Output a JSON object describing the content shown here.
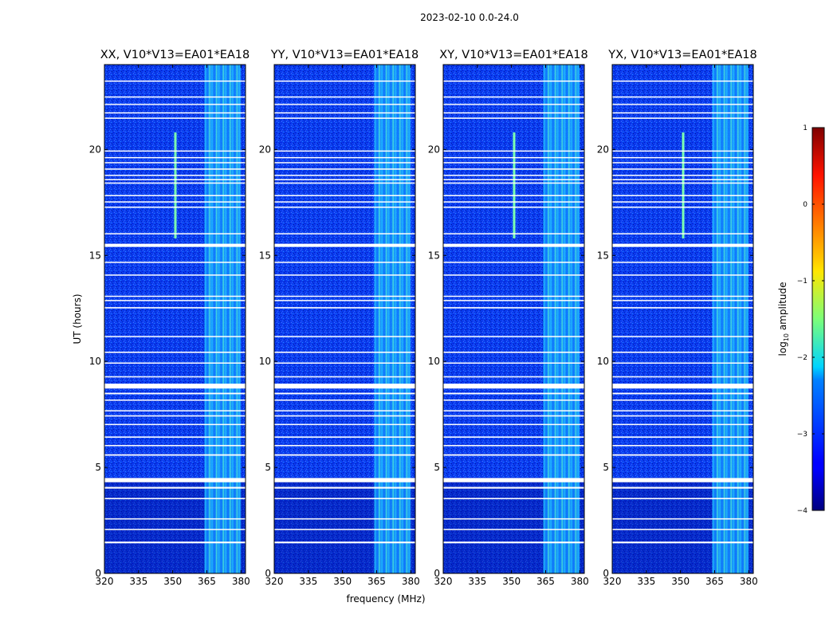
{
  "figure": {
    "suptitle": "2023-02-10 0.0-24.0",
    "xlabel": "frequency (MHz)",
    "ylabel": "UT (hours)"
  },
  "chart_data": {
    "type": "heatmap",
    "colormap": "jet",
    "xlim": [
      320,
      382
    ],
    "ylim": [
      0,
      24
    ],
    "xticks": [
      320,
      335,
      350,
      365,
      380
    ],
    "yticks": [
      0,
      5,
      10,
      15,
      20
    ],
    "flagged_time_bands_hours": [
      [
        1.42,
        1.5
      ],
      [
        2.05,
        2.1
      ],
      [
        2.55,
        2.6
      ],
      [
        3.5,
        3.56
      ],
      [
        4.0,
        4.08
      ],
      [
        4.3,
        4.5
      ],
      [
        5.55,
        5.62
      ],
      [
        6.0,
        6.06
      ],
      [
        6.4,
        6.46
      ],
      [
        7.0,
        7.05
      ],
      [
        7.4,
        7.46
      ],
      [
        7.65,
        7.7
      ],
      [
        8.15,
        8.2
      ],
      [
        8.45,
        8.52
      ],
      [
        8.72,
        8.95
      ],
      [
        9.25,
        9.3
      ],
      [
        9.9,
        9.95
      ],
      [
        10.4,
        10.46
      ],
      [
        11.15,
        11.2
      ],
      [
        12.5,
        12.56
      ],
      [
        12.85,
        12.9
      ],
      [
        13.05,
        13.1
      ],
      [
        14.05,
        14.1
      ],
      [
        14.65,
        14.7
      ],
      [
        15.4,
        15.55
      ],
      [
        16.0,
        16.05
      ],
      [
        17.25,
        17.3
      ],
      [
        17.5,
        17.55
      ],
      [
        17.8,
        17.85
      ],
      [
        18.4,
        18.44
      ],
      [
        18.55,
        18.6
      ],
      [
        18.75,
        18.8
      ],
      [
        19.05,
        19.1
      ],
      [
        19.35,
        19.4
      ],
      [
        19.6,
        19.64
      ],
      [
        19.9,
        19.95
      ],
      [
        21.45,
        21.5
      ],
      [
        21.7,
        21.75
      ],
      [
        22.1,
        22.15
      ],
      [
        22.45,
        22.5
      ],
      [
        23.2,
        23.25
      ]
    ],
    "bright_frequency_band_mhz": [
      364,
      380
    ],
    "panels": [
      {
        "title": "XX, V10*V13=EA01*EA18",
        "rfi_spike_mhz": 351,
        "rfi_spike_hours": [
          15.8,
          20.8
        ]
      },
      {
        "title": "YY, V10*V13=EA01*EA18",
        "rfi_spike_mhz": null,
        "rfi_spike_hours": null
      },
      {
        "title": "XY, V10*V13=EA01*EA18",
        "rfi_spike_mhz": 351,
        "rfi_spike_hours": [
          15.8,
          20.8
        ]
      },
      {
        "title": "YX, V10*V13=EA01*EA18",
        "rfi_spike_mhz": 351,
        "rfi_spike_hours": [
          15.8,
          20.8
        ]
      }
    ],
    "colorbar": {
      "label_prefix": "log",
      "label_sub": "10",
      "label_suffix": " amplitude",
      "range": [
        -4,
        1
      ],
      "ticks": [
        1,
        0,
        -1,
        -2,
        -3,
        -4
      ],
      "tick_labels": [
        "1",
        "0",
        "−1",
        "−2",
        "−3",
        "−4"
      ]
    }
  }
}
